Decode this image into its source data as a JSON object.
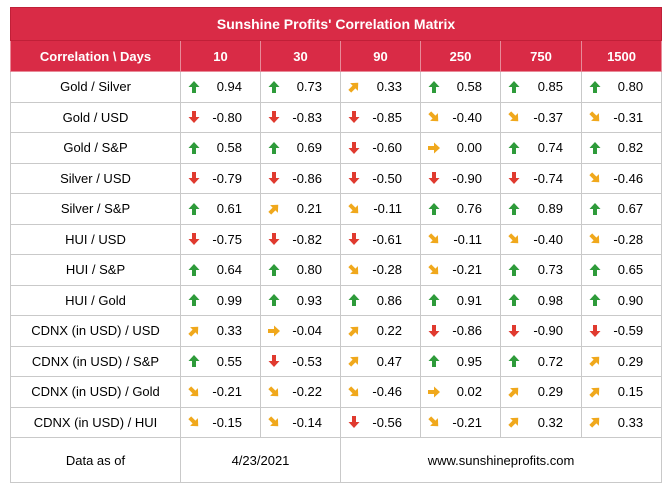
{
  "title": "Sunshine Profits' Correlation Matrix",
  "header": {
    "corner": "Correlation \\ Days",
    "days": [
      "10",
      "30",
      "90",
      "250",
      "750",
      "1500"
    ]
  },
  "colors": {
    "header_bg": "#d92b46",
    "up": "#2e9b3a",
    "down": "#e03a2f",
    "diag": "#f0a81c",
    "flat": "#f0a81c"
  },
  "rows": [
    {
      "label": "Gold / Silver",
      "cells": [
        {
          "arrow": "up",
          "value": "0.94"
        },
        {
          "arrow": "up",
          "value": "0.73"
        },
        {
          "arrow": "up-right",
          "value": "0.33"
        },
        {
          "arrow": "up",
          "value": "0.58"
        },
        {
          "arrow": "up",
          "value": "0.85"
        },
        {
          "arrow": "up",
          "value": "0.80"
        }
      ]
    },
    {
      "label": "Gold / USD",
      "cells": [
        {
          "arrow": "down",
          "value": "-0.80"
        },
        {
          "arrow": "down",
          "value": "-0.83"
        },
        {
          "arrow": "down",
          "value": "-0.85"
        },
        {
          "arrow": "down-right",
          "value": "-0.40"
        },
        {
          "arrow": "down-right",
          "value": "-0.37"
        },
        {
          "arrow": "down-right",
          "value": "-0.31"
        }
      ]
    },
    {
      "label": "Gold / S&P",
      "cells": [
        {
          "arrow": "up",
          "value": "0.58"
        },
        {
          "arrow": "up",
          "value": "0.69"
        },
        {
          "arrow": "down",
          "value": "-0.60"
        },
        {
          "arrow": "right",
          "value": "0.00"
        },
        {
          "arrow": "up",
          "value": "0.74"
        },
        {
          "arrow": "up",
          "value": "0.82"
        }
      ]
    },
    {
      "label": "Silver / USD",
      "cells": [
        {
          "arrow": "down",
          "value": "-0.79"
        },
        {
          "arrow": "down",
          "value": "-0.86"
        },
        {
          "arrow": "down",
          "value": "-0.50"
        },
        {
          "arrow": "down",
          "value": "-0.90"
        },
        {
          "arrow": "down",
          "value": "-0.74"
        },
        {
          "arrow": "down-right",
          "value": "-0.46"
        }
      ]
    },
    {
      "label": "Silver / S&P",
      "cells": [
        {
          "arrow": "up",
          "value": "0.61"
        },
        {
          "arrow": "up-right",
          "value": "0.21"
        },
        {
          "arrow": "down-right",
          "value": "-0.11"
        },
        {
          "arrow": "up",
          "value": "0.76"
        },
        {
          "arrow": "up",
          "value": "0.89"
        },
        {
          "arrow": "up",
          "value": "0.67"
        }
      ]
    },
    {
      "label": "HUI / USD",
      "cells": [
        {
          "arrow": "down",
          "value": "-0.75"
        },
        {
          "arrow": "down",
          "value": "-0.82"
        },
        {
          "arrow": "down",
          "value": "-0.61"
        },
        {
          "arrow": "down-right",
          "value": "-0.11"
        },
        {
          "arrow": "down-right",
          "value": "-0.40"
        },
        {
          "arrow": "down-right",
          "value": "-0.28"
        }
      ]
    },
    {
      "label": "HUI / S&P",
      "cells": [
        {
          "arrow": "up",
          "value": "0.64"
        },
        {
          "arrow": "up",
          "value": "0.80"
        },
        {
          "arrow": "down-right",
          "value": "-0.28"
        },
        {
          "arrow": "down-right",
          "value": "-0.21"
        },
        {
          "arrow": "up",
          "value": "0.73"
        },
        {
          "arrow": "up",
          "value": "0.65"
        }
      ]
    },
    {
      "label": "HUI / Gold",
      "cells": [
        {
          "arrow": "up",
          "value": "0.99"
        },
        {
          "arrow": "up",
          "value": "0.93"
        },
        {
          "arrow": "up",
          "value": "0.86"
        },
        {
          "arrow": "up",
          "value": "0.91"
        },
        {
          "arrow": "up",
          "value": "0.98"
        },
        {
          "arrow": "up",
          "value": "0.90"
        }
      ]
    },
    {
      "label": "CDNX (in USD) / USD",
      "cells": [
        {
          "arrow": "up-right",
          "value": "0.33"
        },
        {
          "arrow": "right",
          "value": "-0.04"
        },
        {
          "arrow": "up-right",
          "value": "0.22"
        },
        {
          "arrow": "down",
          "value": "-0.86"
        },
        {
          "arrow": "down",
          "value": "-0.90"
        },
        {
          "arrow": "down",
          "value": "-0.59"
        }
      ]
    },
    {
      "label": "CDNX (in USD) / S&P",
      "cells": [
        {
          "arrow": "up",
          "value": "0.55"
        },
        {
          "arrow": "down",
          "value": "-0.53"
        },
        {
          "arrow": "up-right",
          "value": "0.47"
        },
        {
          "arrow": "up",
          "value": "0.95"
        },
        {
          "arrow": "up",
          "value": "0.72"
        },
        {
          "arrow": "up-right",
          "value": "0.29"
        }
      ]
    },
    {
      "label": "CDNX (in USD) / Gold",
      "cells": [
        {
          "arrow": "down-right",
          "value": "-0.21"
        },
        {
          "arrow": "down-right",
          "value": "-0.22"
        },
        {
          "arrow": "down-right",
          "value": "-0.46"
        },
        {
          "arrow": "right",
          "value": "0.02"
        },
        {
          "arrow": "up-right",
          "value": "0.29"
        },
        {
          "arrow": "up-right",
          "value": "0.15"
        }
      ]
    },
    {
      "label": "CDNX (in USD) / HUI",
      "cells": [
        {
          "arrow": "down-right",
          "value": "-0.15"
        },
        {
          "arrow": "down-right",
          "value": "-0.14"
        },
        {
          "arrow": "down",
          "value": "-0.56"
        },
        {
          "arrow": "down-right",
          "value": "-0.21"
        },
        {
          "arrow": "up-right",
          "value": "0.32"
        },
        {
          "arrow": "up-right",
          "value": "0.33"
        }
      ]
    }
  ],
  "footer": {
    "label": "Data as of",
    "date": "4/23/2021",
    "url": "www.sunshineprofits.com"
  }
}
